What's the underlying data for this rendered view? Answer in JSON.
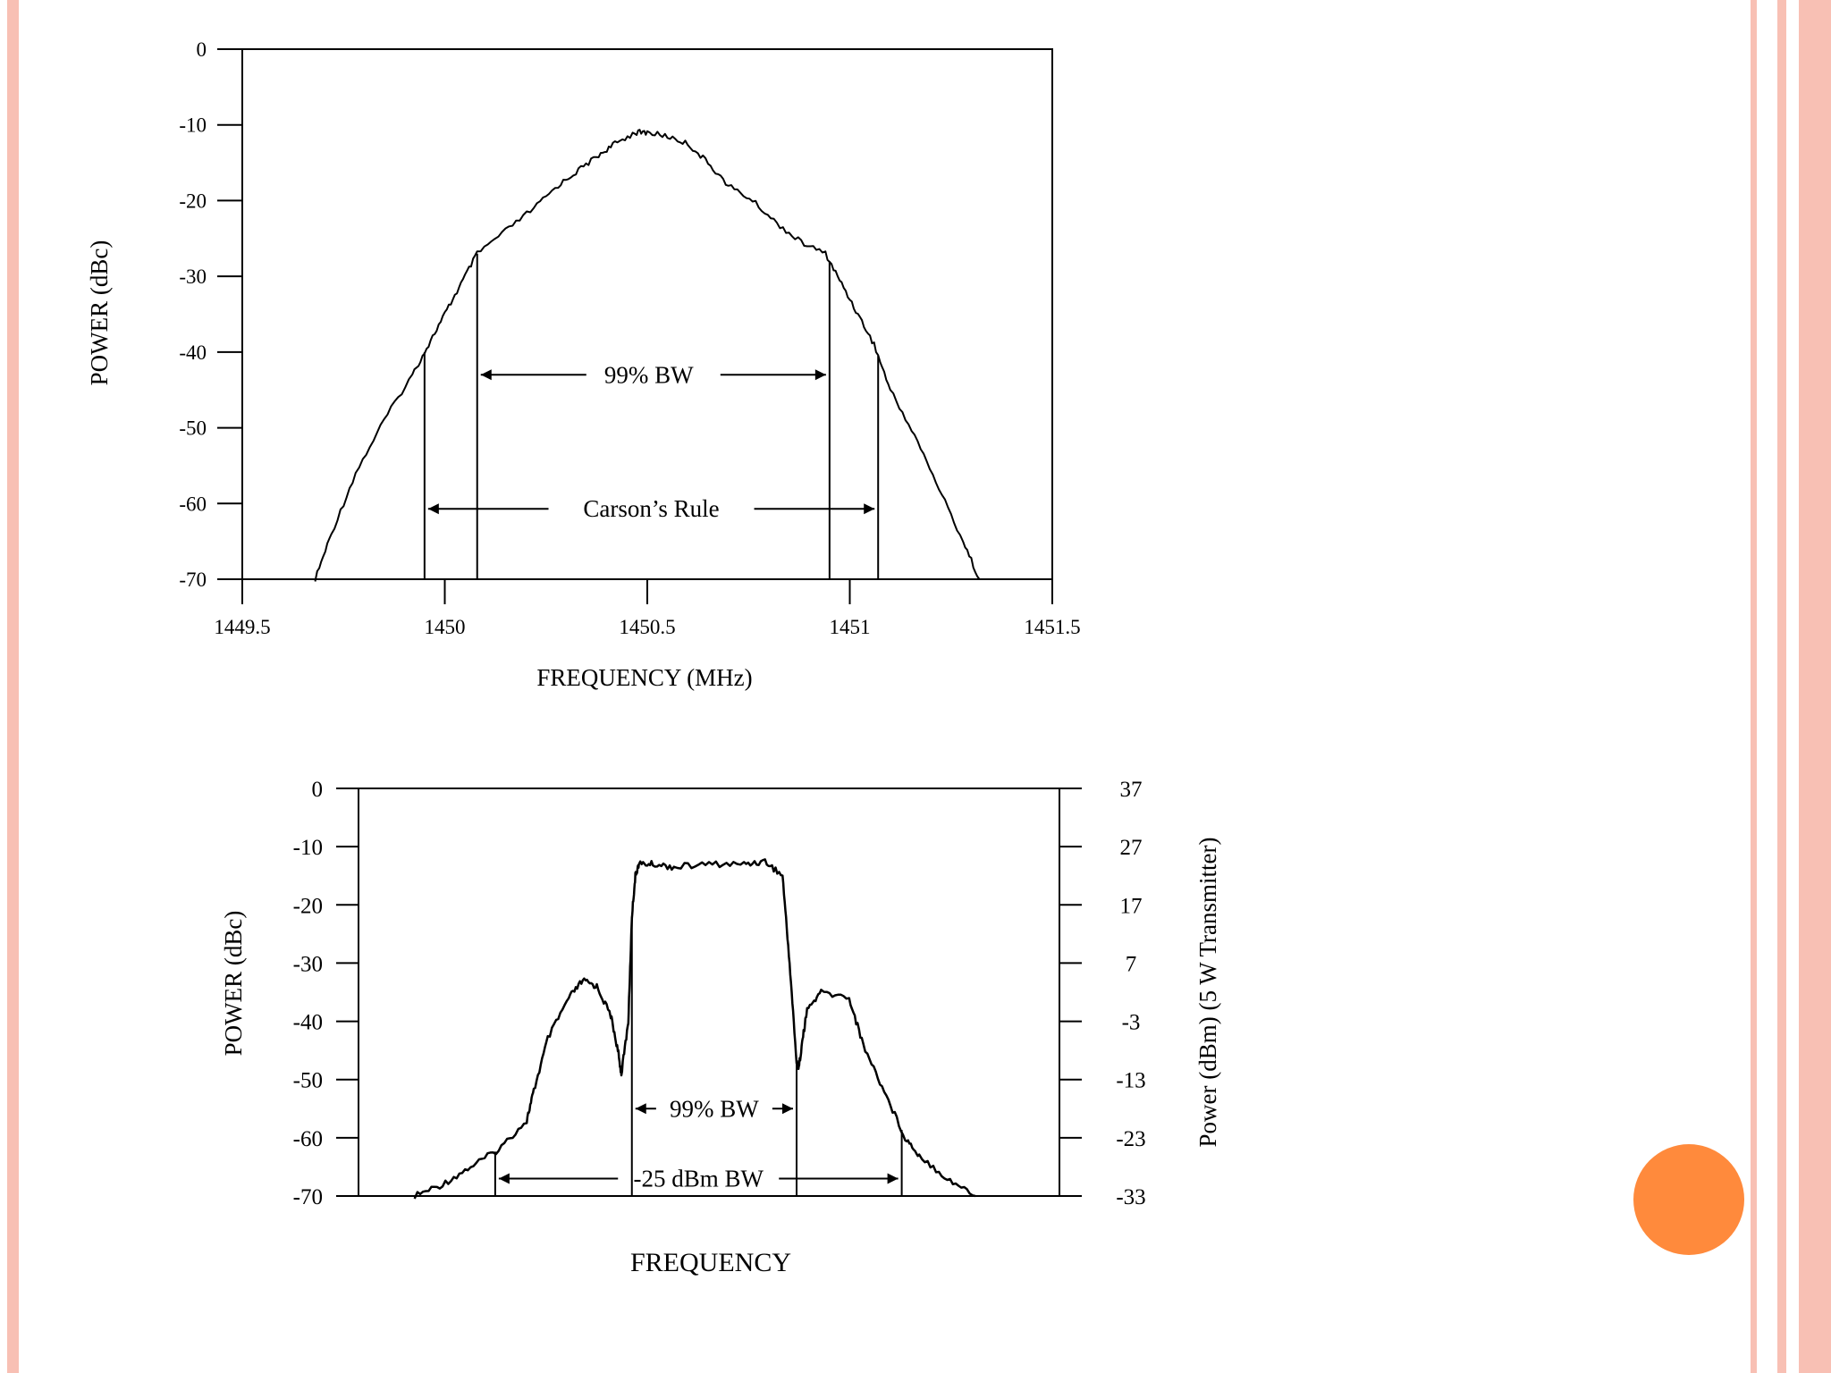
{
  "theme": {
    "stripe_color": "#f8c0b4",
    "accent_circle_color": "#ff8a3c",
    "line_color": "#000000"
  },
  "chart_data": [
    {
      "type": "line",
      "title": "",
      "xlabel": "FREQUENCY (MHz)",
      "ylabel": "POWER (dBc)",
      "xlim": [
        1449.5,
        1451.5
      ],
      "ylim": [
        -70,
        0
      ],
      "x_ticks": [
        1449.5,
        1450,
        1450.5,
        1451,
        1451.5
      ],
      "x_tick_labels": [
        "1449.5",
        "1450",
        "1450.5",
        "1451",
        "1451.5"
      ],
      "y_ticks": [
        0,
        -10,
        -20,
        -30,
        -40,
        -50,
        -60,
        -70
      ],
      "y_tick_labels": [
        "0",
        "-10",
        "-20",
        "-30",
        "-40",
        "-50",
        "-60",
        "-70"
      ],
      "grid": false,
      "series": [
        {
          "x": [
            1449.68,
            1449.72,
            1449.78,
            1449.85,
            1449.92,
            1449.96,
            1450.0,
            1450.04,
            1450.08,
            1450.15,
            1450.22,
            1450.28,
            1450.33,
            1450.38,
            1450.42,
            1450.47,
            1450.5,
            1450.55,
            1450.6,
            1450.65,
            1450.7,
            1450.76,
            1450.82,
            1450.88,
            1450.94,
            1450.98,
            1451.02,
            1451.06,
            1451.1,
            1451.16,
            1451.22,
            1451.28,
            1451.32
          ],
          "y": [
            -70,
            -64,
            -56,
            -49,
            -43,
            -39,
            -35,
            -31,
            -27,
            -24,
            -21,
            -18,
            -16,
            -14,
            -12.5,
            -11,
            -11,
            -11.5,
            -12.5,
            -15,
            -18,
            -20,
            -23,
            -25.5,
            -27,
            -31,
            -35,
            -39,
            -45,
            -51,
            -58,
            -65,
            -70
          ]
        }
      ],
      "annotations": [
        {
          "text": "99% BW",
          "x_start": 1450.08,
          "x_end": 1450.95,
          "y": -43
        },
        {
          "text": "Carson’s Rule",
          "x_start": 1449.95,
          "x_end": 1451.07,
          "y": -60.7
        }
      ]
    },
    {
      "type": "line",
      "title": "",
      "xlabel": "FREQUENCY",
      "ylabel": "POWER (dBc)",
      "ylabel_right": "Power (dBm) (5 W Transmitter)",
      "xlim": [
        0,
        1
      ],
      "ylim": [
        -70,
        0
      ],
      "y_ticks": [
        0,
        -10,
        -20,
        -30,
        -40,
        -50,
        -60,
        -70
      ],
      "y_tick_labels": [
        "0",
        "-10",
        "-20",
        "-30",
        "-40",
        "-50",
        "-60",
        "-70"
      ],
      "y_ticks_right": [
        37,
        27,
        17,
        7,
        -3,
        -13,
        -23,
        -33
      ],
      "y_tick_labels_right": [
        "37",
        "27",
        "17",
        "7",
        "-3",
        "-13",
        "-23",
        "-33"
      ],
      "grid": false,
      "series": [
        {
          "x": [
            0.08,
            0.12,
            0.16,
            0.2,
            0.24,
            0.25,
            0.27,
            0.3,
            0.32,
            0.34,
            0.36,
            0.37,
            0.375,
            0.385,
            0.39,
            0.395,
            0.4,
            0.42,
            0.45,
            0.5,
            0.55,
            0.58,
            0.605,
            0.615,
            0.625,
            0.628,
            0.635,
            0.64,
            0.66,
            0.7,
            0.72,
            0.75,
            0.78,
            0.8,
            0.84,
            0.88
          ],
          "y": [
            -70,
            -68,
            -65,
            -62,
            -57,
            -52,
            -43,
            -36,
            -33,
            -34,
            -39,
            -45,
            -49,
            -40,
            -22,
            -15,
            -13,
            -13,
            -13.5,
            -13,
            -13,
            -12.5,
            -15,
            -30,
            -47,
            -48,
            -42,
            -38,
            -35,
            -36,
            -44,
            -52,
            -60,
            -63,
            -67,
            -70
          ]
        }
      ],
      "annotations": [
        {
          "text": "99% BW",
          "x_start": 0.39,
          "x_end": 0.625,
          "y": -55
        },
        {
          "text": "-25 dBm BW",
          "x_start": 0.195,
          "x_end": 0.775,
          "y": -67
        }
      ]
    }
  ]
}
